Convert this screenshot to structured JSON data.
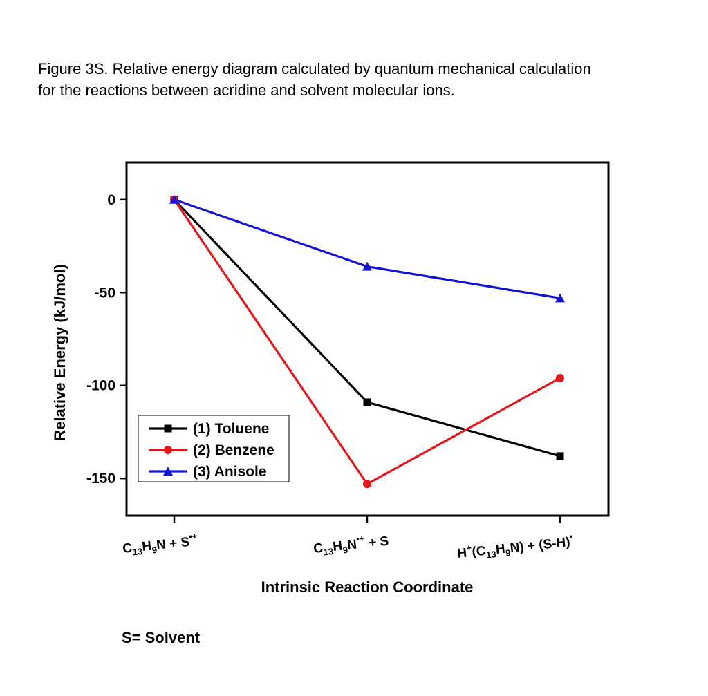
{
  "caption": {
    "line1": "Figure 3S. Relative energy diagram calculated by quantum mechanical calculation",
    "line2": "for the reactions between acridine and solvent molecular ions."
  },
  "footnote": "S= Solvent",
  "chart_data": {
    "type": "line",
    "title": "",
    "xlabel": "Intrinsic Reaction Coordinate",
    "ylabel": "Relative Energy (kJ/mol)",
    "ylim": [
      -170,
      20
    ],
    "yticks": [
      0,
      -50,
      -100,
      -150
    ],
    "grid": false,
    "legend_position": "bottom-left",
    "categories": [
      {
        "base": "C",
        "sub1": "13",
        "mid": "H",
        "sub2": "9",
        "tail": "N + S",
        "sup": "•+"
      },
      {
        "base": "C",
        "sub1": "13",
        "mid": "H",
        "sub2": "9",
        "tail": "N",
        "sup": "•+",
        "after": " + S"
      },
      {
        "pre": "H",
        "presup": "+",
        "base": "(C",
        "sub1": "13",
        "mid": "H",
        "sub2": "9",
        "tail": "N) + (S-H)",
        "sup": "•"
      }
    ],
    "series": [
      {
        "name": "(1) Toluene",
        "color": "#000000",
        "marker": "square",
        "values": [
          0,
          -109,
          -138
        ]
      },
      {
        "name": "(2) Benzene",
        "color": "#e8161b",
        "marker": "circle",
        "values": [
          0,
          -153,
          -96
        ]
      },
      {
        "name": "(3) Anisole",
        "color": "#1414d2",
        "marker": "triangle",
        "values": [
          0,
          -36,
          -53
        ]
      }
    ]
  }
}
